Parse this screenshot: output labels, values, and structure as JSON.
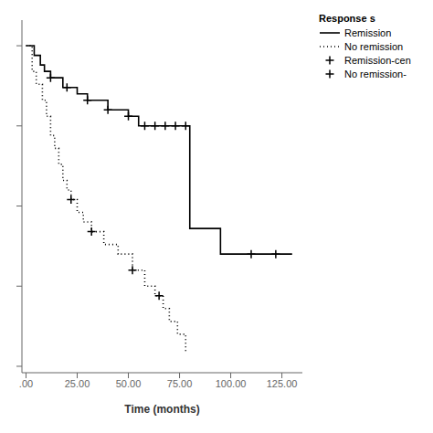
{
  "chart_data": {
    "type": "step",
    "xlabel": "Time (months)",
    "xlim": [
      -2,
      135
    ],
    "ylim": [
      -0.02,
      1.08
    ],
    "xticks": [
      {
        "value": 0,
        "label": ".00"
      },
      {
        "value": 25,
        "label": "25.00"
      },
      {
        "value": 50,
        "label": "50.00"
      },
      {
        "value": 75,
        "label": "75.00"
      },
      {
        "value": 100,
        "label": "100.00"
      },
      {
        "value": 125,
        "label": "125.00"
      }
    ],
    "yticks": [
      0,
      0.25,
      0.5,
      0.75,
      1
    ],
    "tick_labels": "x",
    "grid": false,
    "legend": "right",
    "legend_title": "Response s",
    "series": [
      {
        "name": "Remission",
        "type": "step",
        "line_style": "solid",
        "color": "#000000",
        "x": [
          0,
          4,
          7,
          9,
          12,
          18,
          25,
          30,
          40,
          50,
          55,
          60,
          65,
          70,
          75,
          80,
          90,
          95,
          100,
          110,
          120,
          130
        ],
        "values": [
          1.0,
          0.97,
          0.94,
          0.92,
          0.9,
          0.87,
          0.85,
          0.83,
          0.8,
          0.78,
          0.75,
          0.75,
          0.75,
          0.75,
          0.75,
          0.43,
          0.43,
          0.35,
          0.35,
          0.35,
          0.35,
          0.35
        ]
      },
      {
        "name": "No remission",
        "type": "step",
        "line_style": "dotted",
        "color": "#000000",
        "x": [
          0,
          3,
          5,
          8,
          10,
          12,
          14,
          16,
          18,
          20,
          22,
          25,
          28,
          32,
          38,
          45,
          52,
          58,
          63,
          67,
          70,
          74,
          78
        ],
        "values": [
          1.0,
          0.92,
          0.88,
          0.83,
          0.78,
          0.72,
          0.68,
          0.63,
          0.58,
          0.55,
          0.52,
          0.48,
          0.45,
          0.42,
          0.38,
          0.35,
          0.3,
          0.25,
          0.22,
          0.18,
          0.14,
          0.1,
          0.04
        ]
      },
      {
        "name": "Remission-cen",
        "type": "scatter",
        "marker": "plus",
        "color": "#000000",
        "x": [
          12,
          20,
          30,
          40,
          50,
          58,
          63,
          68,
          73,
          78,
          110,
          122
        ],
        "values": [
          0.9,
          0.87,
          0.83,
          0.8,
          0.78,
          0.75,
          0.75,
          0.75,
          0.75,
          0.75,
          0.35,
          0.35
        ]
      },
      {
        "name": "No remission-",
        "type": "scatter",
        "marker": "plus",
        "color": "#000000",
        "x": [
          22,
          32,
          52,
          65
        ],
        "values": [
          0.52,
          0.42,
          0.3,
          0.22
        ]
      }
    ]
  }
}
